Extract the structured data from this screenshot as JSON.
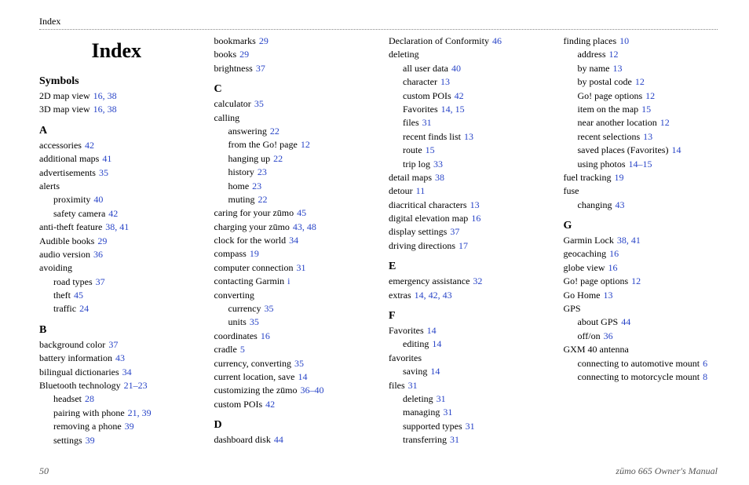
{
  "header": {
    "label": "Index"
  },
  "title": "Index",
  "footer": {
    "page_number": "50",
    "manual_title": "zūmo 665 Owner's Manual"
  },
  "index": [
    {
      "type": "section",
      "label": "Symbols"
    },
    {
      "type": "entry",
      "indent": 0,
      "text": "2D map view",
      "pages": "16, 38"
    },
    {
      "type": "entry",
      "indent": 0,
      "text": "3D map view",
      "pages": "16, 38"
    },
    {
      "type": "section",
      "label": "A"
    },
    {
      "type": "entry",
      "indent": 0,
      "text": "accessories",
      "pages": "42"
    },
    {
      "type": "entry",
      "indent": 0,
      "text": "additional maps",
      "pages": "41"
    },
    {
      "type": "entry",
      "indent": 0,
      "text": "advertisements",
      "pages": "35"
    },
    {
      "type": "entry",
      "indent": 0,
      "text": "alerts"
    },
    {
      "type": "entry",
      "indent": 1,
      "text": "proximity",
      "pages": "40"
    },
    {
      "type": "entry",
      "indent": 1,
      "text": "safety camera",
      "pages": "42"
    },
    {
      "type": "entry",
      "indent": 0,
      "text": "anti-theft feature",
      "pages": "38, 41"
    },
    {
      "type": "entry",
      "indent": 0,
      "text": "Audible books",
      "pages": "29"
    },
    {
      "type": "entry",
      "indent": 0,
      "text": "audio version",
      "pages": "36"
    },
    {
      "type": "entry",
      "indent": 0,
      "text": "avoiding"
    },
    {
      "type": "entry",
      "indent": 1,
      "text": "road types",
      "pages": "37"
    },
    {
      "type": "entry",
      "indent": 1,
      "text": "theft",
      "pages": "45"
    },
    {
      "type": "entry",
      "indent": 1,
      "text": "traffic",
      "pages": "24"
    },
    {
      "type": "section",
      "label": "B"
    },
    {
      "type": "entry",
      "indent": 0,
      "text": "background color",
      "pages": "37"
    },
    {
      "type": "entry",
      "indent": 0,
      "text": "battery information",
      "pages": "43"
    },
    {
      "type": "entry",
      "indent": 0,
      "text": "bilingual dictionaries",
      "pages": "34"
    },
    {
      "type": "entry",
      "indent": 0,
      "text": "Bluetooth technology",
      "pages": "21–23"
    },
    {
      "type": "entry",
      "indent": 1,
      "text": "headset",
      "pages": "28"
    },
    {
      "type": "entry",
      "indent": 1,
      "text": "pairing with phone",
      "pages": "21, 39"
    },
    {
      "type": "entry",
      "indent": 1,
      "text": "removing a phone",
      "pages": "39"
    },
    {
      "type": "entry",
      "indent": 1,
      "text": "settings",
      "pages": "39"
    },
    {
      "type": "entry",
      "indent": 0,
      "text": "bookmarks",
      "pages": "29"
    },
    {
      "type": "entry",
      "indent": 0,
      "text": "books",
      "pages": "29"
    },
    {
      "type": "entry",
      "indent": 0,
      "text": "brightness",
      "pages": "37"
    },
    {
      "type": "section",
      "label": "C"
    },
    {
      "type": "entry",
      "indent": 0,
      "text": "calculator",
      "pages": "35"
    },
    {
      "type": "entry",
      "indent": 0,
      "text": "calling"
    },
    {
      "type": "entry",
      "indent": 1,
      "text": "answering",
      "pages": "22"
    },
    {
      "type": "entry",
      "indent": 1,
      "text": "from the Go! page",
      "pages": "12"
    },
    {
      "type": "entry",
      "indent": 1,
      "text": "hanging up",
      "pages": "22"
    },
    {
      "type": "entry",
      "indent": 1,
      "text": "history",
      "pages": "23"
    },
    {
      "type": "entry",
      "indent": 1,
      "text": "home",
      "pages": "23"
    },
    {
      "type": "entry",
      "indent": 1,
      "text": "muting",
      "pages": "22"
    },
    {
      "type": "entry",
      "indent": 0,
      "text": "caring for your zūmo",
      "pages": "45"
    },
    {
      "type": "entry",
      "indent": 0,
      "text": "charging your zūmo",
      "pages": "43, 48"
    },
    {
      "type": "entry",
      "indent": 0,
      "text": "clock for the world",
      "pages": "34"
    },
    {
      "type": "entry",
      "indent": 0,
      "text": "compass",
      "pages": "19"
    },
    {
      "type": "entry",
      "indent": 0,
      "text": "computer connection",
      "pages": "31"
    },
    {
      "type": "entry",
      "indent": 0,
      "text": "contacting Garmin",
      "pages": "i"
    },
    {
      "type": "entry",
      "indent": 0,
      "text": "converting"
    },
    {
      "type": "entry",
      "indent": 1,
      "text": "currency",
      "pages": "35"
    },
    {
      "type": "entry",
      "indent": 1,
      "text": "units",
      "pages": "35"
    },
    {
      "type": "entry",
      "indent": 0,
      "text": "coordinates",
      "pages": "16"
    },
    {
      "type": "entry",
      "indent": 0,
      "text": "cradle",
      "pages": "5"
    },
    {
      "type": "entry",
      "indent": 0,
      "text": "currency, converting",
      "pages": "35"
    },
    {
      "type": "entry",
      "indent": 0,
      "text": "current location, save",
      "pages": "14"
    },
    {
      "type": "entry",
      "indent": 0,
      "text": "customizing the zūmo",
      "pages": "36–40"
    },
    {
      "type": "entry",
      "indent": 0,
      "text": "custom POIs",
      "pages": "42"
    },
    {
      "type": "section",
      "label": "D"
    },
    {
      "type": "entry",
      "indent": 0,
      "text": "dashboard disk",
      "pages": "44"
    },
    {
      "type": "entry",
      "indent": 0,
      "text": "Declaration of Conformity",
      "pages": "46"
    },
    {
      "type": "entry",
      "indent": 0,
      "text": "deleting"
    },
    {
      "type": "entry",
      "indent": 1,
      "text": "all user data",
      "pages": "40"
    },
    {
      "type": "entry",
      "indent": 1,
      "text": "character",
      "pages": "13"
    },
    {
      "type": "entry",
      "indent": 1,
      "text": "custom POIs",
      "pages": "42"
    },
    {
      "type": "entry",
      "indent": 1,
      "text": "Favorites",
      "pages": "14, 15"
    },
    {
      "type": "entry",
      "indent": 1,
      "text": "files",
      "pages": "31"
    },
    {
      "type": "entry",
      "indent": 1,
      "text": "recent finds list",
      "pages": "13"
    },
    {
      "type": "entry",
      "indent": 1,
      "text": "route",
      "pages": "15"
    },
    {
      "type": "entry",
      "indent": 1,
      "text": "trip log",
      "pages": "33"
    },
    {
      "type": "entry",
      "indent": 0,
      "text": "detail maps",
      "pages": "38"
    },
    {
      "type": "entry",
      "indent": 0,
      "text": "detour",
      "pages": "11"
    },
    {
      "type": "entry",
      "indent": 0,
      "text": "diacritical characters",
      "pages": "13"
    },
    {
      "type": "entry",
      "indent": 0,
      "text": "digital elevation map",
      "pages": "16"
    },
    {
      "type": "entry",
      "indent": 0,
      "text": "display settings",
      "pages": "37"
    },
    {
      "type": "entry",
      "indent": 0,
      "text": "driving directions",
      "pages": "17"
    },
    {
      "type": "section",
      "label": "E"
    },
    {
      "type": "entry",
      "indent": 0,
      "text": "emergency assistance",
      "pages": "32"
    },
    {
      "type": "entry",
      "indent": 0,
      "text": "extras",
      "pages": "14, 42, 43"
    },
    {
      "type": "section",
      "label": "F"
    },
    {
      "type": "entry",
      "indent": 0,
      "text": "Favorites",
      "pages": "14"
    },
    {
      "type": "entry",
      "indent": 1,
      "text": "editing",
      "pages": "14"
    },
    {
      "type": "entry",
      "indent": 0,
      "text": "favorites"
    },
    {
      "type": "entry",
      "indent": 1,
      "text": "saving",
      "pages": "14"
    },
    {
      "type": "entry",
      "indent": 0,
      "text": "files",
      "pages": "31"
    },
    {
      "type": "entry",
      "indent": 1,
      "text": "deleting",
      "pages": "31"
    },
    {
      "type": "entry",
      "indent": 1,
      "text": "managing",
      "pages": "31"
    },
    {
      "type": "entry",
      "indent": 1,
      "text": "supported types",
      "pages": "31"
    },
    {
      "type": "entry",
      "indent": 1,
      "text": "transferring",
      "pages": "31"
    },
    {
      "type": "entry",
      "indent": 0,
      "text": "finding places",
      "pages": "10"
    },
    {
      "type": "entry",
      "indent": 1,
      "text": "address",
      "pages": "12"
    },
    {
      "type": "entry",
      "indent": 1,
      "text": "by name",
      "pages": "13"
    },
    {
      "type": "entry",
      "indent": 1,
      "text": "by postal code",
      "pages": "12"
    },
    {
      "type": "entry",
      "indent": 1,
      "text": "Go! page options",
      "pages": "12"
    },
    {
      "type": "entry",
      "indent": 1,
      "text": "item on the map",
      "pages": "15"
    },
    {
      "type": "entry",
      "indent": 1,
      "text": "near another location",
      "pages": "12"
    },
    {
      "type": "entry",
      "indent": 1,
      "text": "recent selections",
      "pages": "13"
    },
    {
      "type": "entry",
      "indent": 1,
      "text": "saved places (Favorites)",
      "pages": "14"
    },
    {
      "type": "entry",
      "indent": 1,
      "text": "using photos",
      "pages": "14–15"
    },
    {
      "type": "entry",
      "indent": 0,
      "text": "fuel tracking",
      "pages": "19"
    },
    {
      "type": "entry",
      "indent": 0,
      "text": "fuse"
    },
    {
      "type": "entry",
      "indent": 1,
      "text": "changing",
      "pages": "43"
    },
    {
      "type": "section",
      "label": "G"
    },
    {
      "type": "entry",
      "indent": 0,
      "text": "Garmin Lock",
      "pages": "38, 41"
    },
    {
      "type": "entry",
      "indent": 0,
      "text": "geocaching",
      "pages": "16"
    },
    {
      "type": "entry",
      "indent": 0,
      "text": "globe view",
      "pages": "16"
    },
    {
      "type": "entry",
      "indent": 0,
      "text": "Go! page options",
      "pages": "12"
    },
    {
      "type": "entry",
      "indent": 0,
      "text": "Go Home",
      "pages": "13"
    },
    {
      "type": "entry",
      "indent": 0,
      "text": "GPS"
    },
    {
      "type": "entry",
      "indent": 1,
      "text": "about GPS",
      "pages": "44"
    },
    {
      "type": "entry",
      "indent": 1,
      "text": "off/on",
      "pages": "36"
    },
    {
      "type": "entry",
      "indent": 0,
      "text": "GXM 40 antenna"
    },
    {
      "type": "entry",
      "indent": 1,
      "text": "connecting to automotive mount",
      "pages": "6"
    },
    {
      "type": "entry",
      "indent": 1,
      "text": "connecting to motorcycle mount",
      "pages": "8"
    }
  ]
}
